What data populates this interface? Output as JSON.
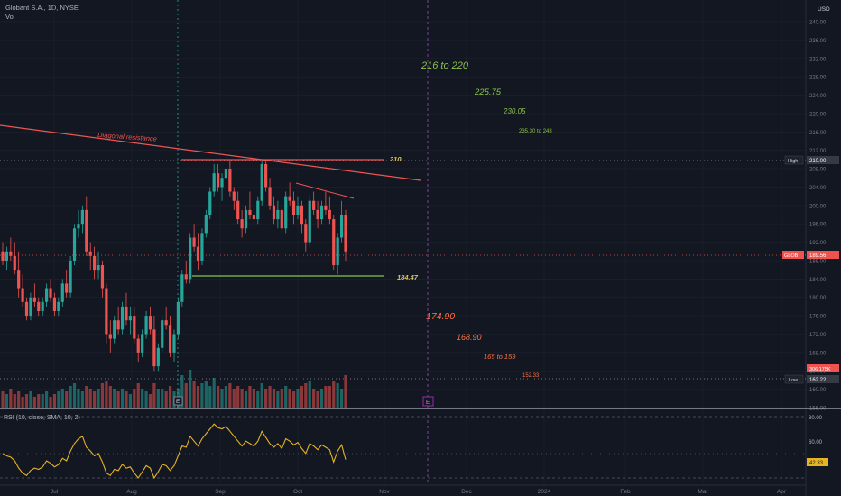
{
  "header": {
    "title": "Globant S.A., 1D, NYSE",
    "volume_label": "Vol"
  },
  "price_axis": {
    "currency_label": "USD",
    "ticks": [
      "240.00",
      "236.00",
      "232.00",
      "228.00",
      "224.00",
      "220.00",
      "216.00",
      "212.00",
      "208.00",
      "204.00",
      "200.00",
      "196.00",
      "192.00",
      "188.00",
      "184.00",
      "180.00",
      "176.00",
      "172.00",
      "168.00",
      "164.00",
      "160.00",
      "156.00"
    ]
  },
  "rsi": {
    "label": "RSI (10, close, SMA, 10, 2)",
    "ticks": [
      "80.00",
      "60.00"
    ],
    "current_value": "42.33"
  },
  "time_axis": {
    "labels": [
      "Jul",
      "Aug",
      "Sep",
      "Oct",
      "Nov",
      "Dec",
      "2024",
      "Feb",
      "Mar",
      "Apr"
    ]
  },
  "markers": {
    "high_label": "High",
    "high_value": "210.00",
    "symbol_label": "GLOB",
    "symbol_value": "189.56",
    "low_label": "Low",
    "low_value": "162.22",
    "volume_value": "306.175K"
  },
  "annotations": {
    "diagonal_resistance": "Diagonal resistance",
    "level_210": "210",
    "level_184": "184.47",
    "targets_up": [
      "216 to 220",
      "225.75",
      "230.05",
      "235.30 to 243"
    ],
    "targets_down": [
      "174.90",
      "168.90",
      "165 to 159",
      "152.33"
    ]
  },
  "event_marker": "E",
  "colors": {
    "background": "#131722",
    "up": "#26a69a",
    "down": "#ef5350",
    "target_up": "#8bc34a",
    "target_down": "#ff7043",
    "rsi_line": "#e6b422",
    "resistance": "#f05454"
  },
  "chart_data": {
    "type": "candlestick",
    "title": "Globant S.A., 1D, NYSE",
    "y_range": [
      156,
      242
    ],
    "candles": [
      [
        190,
        192,
        187,
        188
      ],
      [
        188,
        191,
        186,
        190
      ],
      [
        190,
        193,
        188,
        189
      ],
      [
        189,
        192,
        185,
        186
      ],
      [
        186,
        190,
        180,
        182
      ],
      [
        182,
        185,
        178,
        179
      ],
      [
        179,
        180,
        175,
        176
      ],
      [
        176,
        181,
        175,
        180
      ],
      [
        180,
        183,
        178,
        179
      ],
      [
        179,
        180,
        176,
        177
      ],
      [
        177,
        180,
        176,
        179
      ],
      [
        179,
        183,
        178,
        182
      ],
      [
        182,
        184,
        179,
        180
      ],
      [
        180,
        181,
        176,
        177
      ],
      [
        177,
        180,
        176,
        179
      ],
      [
        179,
        184,
        178,
        183
      ],
      [
        183,
        186,
        180,
        181
      ],
      [
        181,
        189,
        180,
        188
      ],
      [
        188,
        196,
        187,
        195
      ],
      [
        195,
        199,
        193,
        196
      ],
      [
        196,
        200,
        194,
        199
      ],
      [
        199,
        202,
        189,
        190
      ],
      [
        190,
        192,
        186,
        189
      ],
      [
        189,
        191,
        184,
        186
      ],
      [
        186,
        190,
        184,
        187
      ],
      [
        187,
        188,
        180,
        182
      ],
      [
        182,
        183,
        170,
        172
      ],
      [
        172,
        175,
        168,
        171
      ],
      [
        171,
        176,
        170,
        175
      ],
      [
        175,
        178,
        172,
        173
      ],
      [
        173,
        179,
        172,
        178
      ],
      [
        178,
        181,
        174,
        175
      ],
      [
        175,
        178,
        172,
        176
      ],
      [
        176,
        178,
        170,
        171
      ],
      [
        171,
        172,
        166,
        168
      ],
      [
        168,
        173,
        167,
        172
      ],
      [
        172,
        177,
        171,
        176
      ],
      [
        176,
        178,
        172,
        173
      ],
      [
        173,
        176,
        164,
        165
      ],
      [
        165,
        170,
        164,
        169
      ],
      [
        169,
        176,
        168,
        175
      ],
      [
        175,
        178,
        173,
        174
      ],
      [
        174,
        176,
        167,
        168
      ],
      [
        168,
        173,
        166,
        172
      ],
      [
        172,
        180,
        171,
        179
      ],
      [
        179,
        186,
        178,
        185
      ],
      [
        185,
        188,
        183,
        184
      ],
      [
        184,
        194,
        183,
        193
      ],
      [
        193,
        196,
        190,
        191
      ],
      [
        191,
        194,
        186,
        188
      ],
      [
        188,
        195,
        187,
        194
      ],
      [
        194,
        199,
        193,
        198
      ],
      [
        198,
        204,
        197,
        203
      ],
      [
        203,
        209,
        202,
        207
      ],
      [
        207,
        209,
        203,
        204
      ],
      [
        204,
        207,
        201,
        206
      ],
      [
        206,
        210,
        204,
        208
      ],
      [
        208,
        210,
        202,
        203
      ],
      [
        203,
        204,
        199,
        201
      ],
      [
        201,
        203,
        196,
        197
      ],
      [
        197,
        199,
        193,
        195
      ],
      [
        195,
        200,
        194,
        199
      ],
      [
        199,
        203,
        197,
        198
      ],
      [
        198,
        200,
        195,
        197
      ],
      [
        197,
        202,
        196,
        201
      ],
      [
        201,
        210,
        200,
        209
      ],
      [
        209,
        210,
        203,
        204
      ],
      [
        204,
        206,
        199,
        200
      ],
      [
        200,
        202,
        196,
        197
      ],
      [
        197,
        201,
        195,
        199
      ],
      [
        199,
        200,
        194,
        195
      ],
      [
        195,
        203,
        194,
        202
      ],
      [
        202,
        205,
        200,
        201
      ],
      [
        201,
        203,
        196,
        198
      ],
      [
        198,
        202,
        197,
        200
      ],
      [
        200,
        201,
        194,
        196
      ],
      [
        196,
        197,
        190,
        192
      ],
      [
        192,
        202,
        191,
        201
      ],
      [
        201,
        203,
        198,
        199
      ],
      [
        199,
        201,
        195,
        197
      ],
      [
        197,
        201,
        196,
        200
      ],
      [
        200,
        203,
        198,
        199
      ],
      [
        199,
        202,
        196,
        197
      ],
      [
        197,
        198,
        186,
        187
      ],
      [
        187,
        194,
        185,
        193
      ],
      [
        193,
        201,
        192,
        198
      ],
      [
        198,
        199,
        188,
        190
      ]
    ],
    "volume": [
      6,
      5,
      7,
      5,
      6,
      4,
      5,
      6,
      4,
      5,
      5,
      6,
      4,
      5,
      6,
      7,
      6,
      8,
      9,
      7,
      6,
      8,
      7,
      6,
      7,
      9,
      10,
      8,
      7,
      6,
      7,
      6,
      5,
      7,
      9,
      7,
      6,
      5,
      9,
      7,
      7,
      6,
      8,
      6,
      7,
      12,
      9,
      14,
      10,
      8,
      9,
      10,
      8,
      11,
      8,
      7,
      8,
      9,
      7,
      8,
      7,
      6,
      8,
      7,
      6,
      9,
      7,
      8,
      7,
      6,
      7,
      8,
      7,
      6,
      7,
      8,
      9,
      10,
      7,
      6,
      7,
      8,
      8,
      10,
      9,
      7,
      12
    ],
    "rsi": [
      50,
      48,
      47,
      44,
      38,
      34,
      32,
      36,
      38,
      37,
      39,
      44,
      42,
      39,
      41,
      46,
      44,
      52,
      58,
      62,
      64,
      55,
      52,
      48,
      50,
      43,
      34,
      32,
      37,
      36,
      41,
      38,
      39,
      34,
      30,
      35,
      40,
      38,
      30,
      35,
      41,
      40,
      36,
      40,
      48,
      56,
      55,
      64,
      60,
      56,
      62,
      66,
      70,
      74,
      71,
      70,
      72,
      68,
      64,
      60,
      56,
      60,
      58,
      56,
      60,
      68,
      63,
      58,
      55,
      58,
      54,
      62,
      60,
      57,
      59,
      54,
      50,
      58,
      56,
      53,
      57,
      55,
      53,
      43,
      52,
      57,
      45
    ],
    "levels": {
      "high": 210.0,
      "resistance_210": 210,
      "support": 184.47,
      "current": 189.56,
      "low": 162.22
    },
    "targets_up": [
      "216 to 220",
      "225.75",
      "230.05",
      "235.30 to 243"
    ],
    "targets_down": [
      "174.90",
      "168.90",
      "165 to 159",
      "152.33"
    ],
    "rsi_range": [
      0,
      100
    ]
  }
}
